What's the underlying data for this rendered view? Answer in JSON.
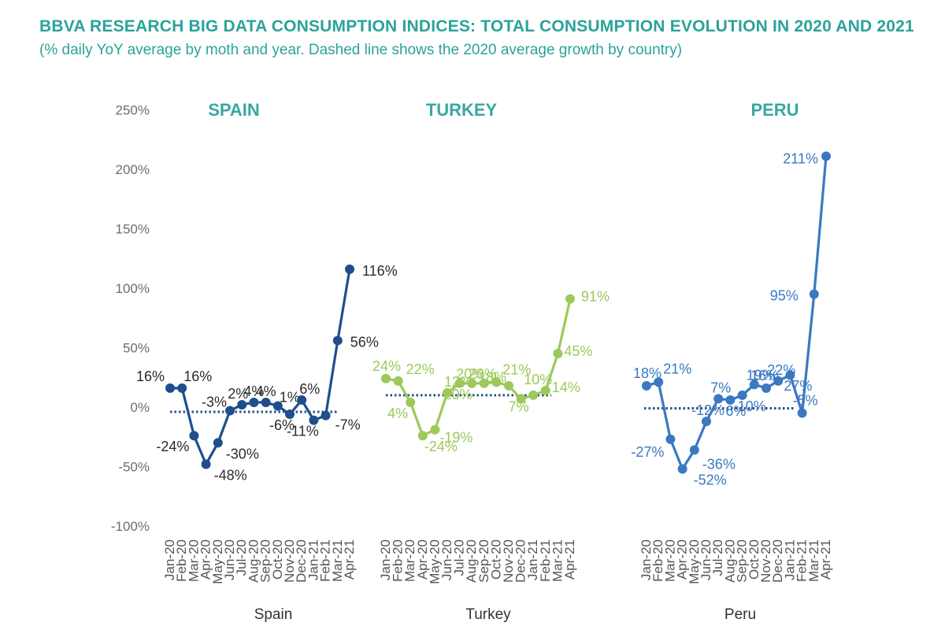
{
  "title": "BBVA RESEARCH BIG DATA CONSUMPTION INDICES: TOTAL CONSUMPTION EVOLUTION IN 2020 AND 2021",
  "subtitle": "(% daily YoY average by moth and year. Dashed line shows the 2020 average growth by country)",
  "colors": {
    "title": "#2aa39a",
    "panel_title": "#3aa7a2"
  },
  "chart_data": {
    "type": "line",
    "ylim": [
      -100,
      250
    ],
    "yticks": [
      "250%",
      "200%",
      "150%",
      "100%",
      "50%",
      "0%",
      "-50%",
      "-100%"
    ],
    "ytick_values": [
      250,
      200,
      150,
      100,
      50,
      0,
      -50,
      -100
    ],
    "grid": false,
    "months": [
      "Jan-20",
      "Feb-20",
      "Mar-20",
      "Apr-20",
      "May-20",
      "Jun-20",
      "Jul-20",
      "Aug-20",
      "Sep-20",
      "Oct-20",
      "Nov-20",
      "Dec-20",
      "Jan-21",
      "Feb-21",
      "Mar-21",
      "Apr-21"
    ],
    "panels": [
      {
        "heading": "SPAIN",
        "country": "Spain",
        "color": "#1f4e8c",
        "average_2020": -4,
        "values": [
          16,
          16,
          -24,
          -48,
          -30,
          -3,
          2,
          4,
          4,
          1,
          -6,
          6,
          -11,
          -7,
          56,
          116
        ],
        "labels": [
          "16%",
          "16%",
          "-24%",
          "-48%",
          "-30%",
          "-3%",
          "2%",
          "4%",
          "4%",
          "1%",
          "-6%",
          "6%",
          "-11%",
          "-7%",
          "56%",
          "116%"
        ]
      },
      {
        "heading": "TURKEY",
        "country": "Turkey",
        "color": "#9cc959",
        "average_2020": 10,
        "values": [
          24,
          22,
          4,
          -24,
          -19,
          12,
          20,
          20,
          20,
          21,
          18,
          7,
          10,
          14,
          45,
          91
        ],
        "labels": [
          "24%",
          "22%",
          "4%",
          "-24%",
          "-19%",
          "12%",
          "20%",
          "20%",
          "20%",
          "21%",
          "18%",
          "7%",
          "10%",
          "14%",
          "45%",
          "91%"
        ]
      },
      {
        "heading": "PERU",
        "country": "Peru",
        "color": "#3a78c2",
        "average_2020": -1,
        "values": [
          18,
          21,
          -27,
          -52,
          -36,
          -12,
          7,
          6,
          10,
          19,
          16,
          22,
          27,
          -5,
          95,
          211
        ],
        "labels": [
          "18%",
          "21%",
          "-27%",
          "-52%",
          "-36%",
          "-12%",
          "7%",
          "6%",
          "10%",
          "19%",
          "16%",
          "22%",
          "27%",
          "-5%",
          "95%",
          "211%"
        ]
      }
    ]
  }
}
